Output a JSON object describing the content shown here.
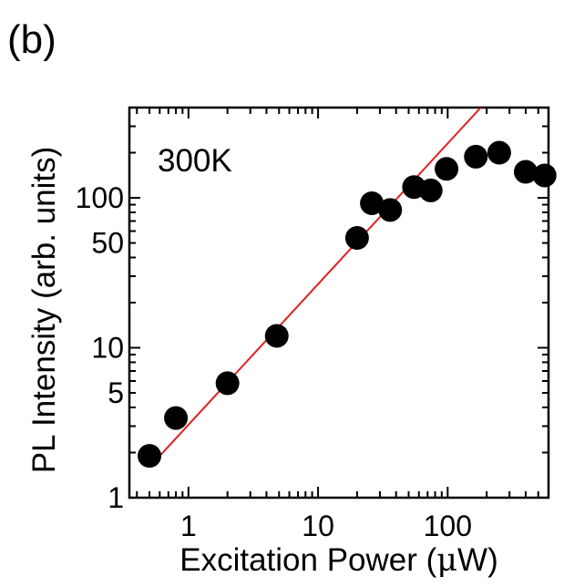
{
  "panel_label": "(b)",
  "chart_data": {
    "type": "scatter",
    "title": "",
    "annotation": "300K",
    "xlabel_main": "Excitation Power (",
    "xlabel_unit_symbol": "μ",
    "xlabel_unit_rest": "W)",
    "ylabel": "PL Intensity (arb. units)",
    "xscale": "log",
    "yscale": "log",
    "xlim": [
      0.35,
      600
    ],
    "ylim": [
      1,
      400
    ],
    "x_ticks": [
      {
        "value": 1,
        "label": "1"
      },
      {
        "value": 10,
        "label": "10"
      },
      {
        "value": 100,
        "label": "100"
      }
    ],
    "y_ticks": [
      {
        "value": 1,
        "label": "1"
      },
      {
        "value": 5,
        "label": "5"
      },
      {
        "value": 10,
        "label": "10"
      },
      {
        "value": 50,
        "label": "50"
      },
      {
        "value": 100,
        "label": "100"
      }
    ],
    "grid": false,
    "series": [
      {
        "color": "#000000",
        "marker": "filled-circle",
        "points": [
          {
            "x": 0.5,
            "y": 1.9
          },
          {
            "x": 0.8,
            "y": 3.4
          },
          {
            "x": 2,
            "y": 5.8
          },
          {
            "x": 4.8,
            "y": 12
          },
          {
            "x": 20,
            "y": 54
          },
          {
            "x": 26,
            "y": 92
          },
          {
            "x": 36,
            "y": 83
          },
          {
            "x": 55,
            "y": 118
          },
          {
            "x": 74,
            "y": 112
          },
          {
            "x": 98,
            "y": 156
          },
          {
            "x": 165,
            "y": 188
          },
          {
            "x": 250,
            "y": 200
          },
          {
            "x": 400,
            "y": 149
          },
          {
            "x": 560,
            "y": 141
          }
        ]
      }
    ],
    "fit_line": {
      "color": "#e02020",
      "points": [
        {
          "x": 0.5,
          "y": 1.6
        },
        {
          "x": 180,
          "y": 400
        }
      ]
    }
  }
}
